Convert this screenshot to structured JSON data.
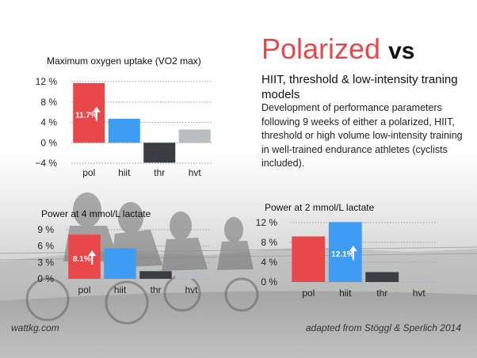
{
  "page": {
    "title_accent": "Polarized",
    "title_rest": "vs",
    "subtitle": "HIIT, threshold & low-intensity traning models",
    "description": "Development of performance parameters following 9 weeks of either a polarized, HIIT, threshold or high volume low-intensity training in well-trained endurance athletes (cyclists included).",
    "footer_left": "wattkg.com",
    "footer_right": "adapted from Stöggl & Sperlich 2014"
  },
  "colors": {
    "pol": "#e8484a",
    "hiit": "#3f9cf3",
    "thr": "#3a3d42",
    "hvt": "#b9bcc0"
  },
  "chart_data": [
    {
      "type": "bar",
      "title": "Maximum oxygen uptake (VO2 max)",
      "categories": [
        "pol",
        "hiit",
        "thr",
        "hvt"
      ],
      "values": [
        11.7,
        4.7,
        -3.9,
        2.6
      ],
      "ylim": [
        -4,
        12
      ],
      "yticks": [
        -4,
        0,
        4,
        8,
        12
      ],
      "ytick_labels": [
        "−4 %",
        "0 %",
        "4 %",
        "8 %",
        "12 %"
      ],
      "annotation": {
        "category": "pol",
        "label": "11.7%"
      },
      "grid": true
    },
    {
      "type": "bar",
      "title": "Power at 4 mmol/L lactate",
      "categories": [
        "pol",
        "hiit",
        "thr",
        "hvt"
      ],
      "values": [
        8.1,
        5.6,
        1.4,
        1.2
      ],
      "ylim": [
        0,
        9
      ],
      "yticks": [
        0,
        3,
        6,
        9
      ],
      "ytick_labels": [
        "0 %",
        "3 %",
        "6 %",
        "9 %"
      ],
      "annotation": {
        "category": "pol",
        "label": "8.1%"
      },
      "grid": true
    },
    {
      "type": "bar",
      "title": "Power at 2 mmol/L lactate",
      "categories": [
        "pol",
        "hiit",
        "thr",
        "hvt"
      ],
      "values": [
        9.2,
        12.1,
        2.0,
        0.8
      ],
      "ylim": [
        0,
        12
      ],
      "yticks": [
        0,
        4,
        8,
        12
      ],
      "ytick_labels": [
        "0 %",
        "4 %",
        "8 %",
        "12 %"
      ],
      "annotation": {
        "category": "hiit",
        "label": "12.1%"
      },
      "grid": true
    }
  ]
}
